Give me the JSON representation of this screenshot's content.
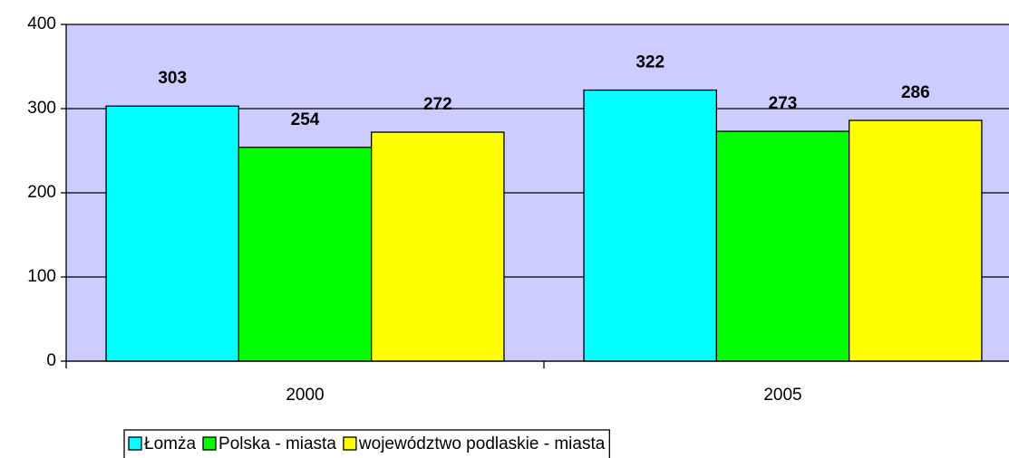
{
  "chart_data": {
    "type": "bar",
    "categories": [
      "2000",
      "2005"
    ],
    "series": [
      {
        "name": "Łomża",
        "color": "#00ffff",
        "values": [
          303,
          322
        ]
      },
      {
        "name": "Polska - miasta",
        "color": "#00ff00",
        "values": [
          254,
          273
        ]
      },
      {
        "name": "województwo podlaskie - miasta",
        "color": "#ffff00",
        "values": [
          272,
          286
        ]
      }
    ],
    "ylim": [
      0,
      400
    ],
    "yticks": [
      0,
      100,
      200,
      300,
      400
    ],
    "grid": true,
    "plot_background": "#ccccff",
    "legend": "bottom"
  }
}
